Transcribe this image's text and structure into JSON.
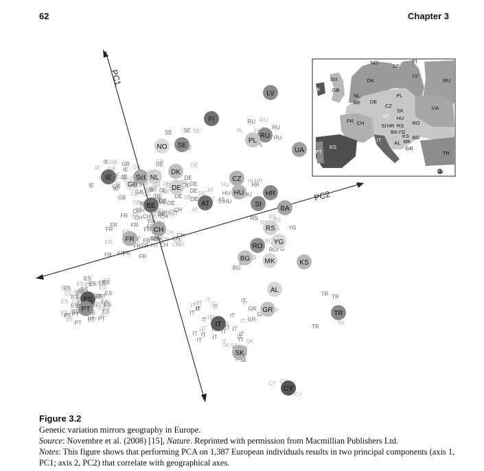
{
  "page": {
    "number": "62",
    "chapter": "Chapter 3"
  },
  "figure": {
    "label": "Figure 3.2",
    "title": "Genetic variation mirrors geography in Europe.",
    "source_label": "Source",
    "source_text_a": ": Novembre et al. (2008) [15], ",
    "source_journal": "Nature",
    "source_text_b": ". Reprinted with permission from Macmillian Publishers Ltd.",
    "notes_label": "Notes",
    "notes_text": ": This figure shows that performing PCA on 1,387 European individuals results in two principal components (axis 1, PC1; axis 2, PC2) that correlate with geographical axes."
  },
  "chart_data": {
    "type": "scatter",
    "axes": {
      "pc1_label": "PC1",
      "pc2_label": "PC2"
    },
    "centroids": [
      {
        "code": "LV",
        "shade": "#8a8a8a"
      },
      {
        "code": "FI",
        "shade": "#707070"
      },
      {
        "code": "RU",
        "shade": "#8e8e8e"
      },
      {
        "code": "PL",
        "shade": "#c6c6c6"
      },
      {
        "code": "UA",
        "shade": "#a0a0a0"
      },
      {
        "code": "NO",
        "shade": "#dadada"
      },
      {
        "code": "SE",
        "shade": "#8c8c8c"
      },
      {
        "code": "DK",
        "shade": "#c0c0c0"
      },
      {
        "code": "CZ",
        "shade": "#b0b0b0"
      },
      {
        "code": "IE",
        "shade": "#6a6a6a"
      },
      {
        "code": "GB",
        "shade": "#e4e4e4"
      },
      {
        "code": "Sct",
        "shade": "#a8a8a8"
      },
      {
        "code": "NL",
        "shade": "#d0d0d0"
      },
      {
        "code": "DE",
        "shade": "#d2d2d2"
      },
      {
        "code": "HU",
        "shade": "#b6b6b6"
      },
      {
        "code": "HR",
        "shade": "#8a8a8a"
      },
      {
        "code": "AT",
        "shade": "#6e6e6e"
      },
      {
        "code": "SI",
        "shade": "#8a8a8a"
      },
      {
        "code": "BA",
        "shade": "#a4a4a4"
      },
      {
        "code": "BE",
        "shade": "#6c6c6c"
      },
      {
        "code": "CH",
        "shade": "#a8a8a8"
      },
      {
        "code": "FR",
        "shade": "#b2b2b2"
      },
      {
        "code": "RS",
        "shade": "#d4d4d4"
      },
      {
        "code": "YG",
        "shade": "#d8d8d8"
      },
      {
        "code": "RO",
        "shade": "#8e8e8e"
      },
      {
        "code": "BG",
        "shade": "#c0c0c0"
      },
      {
        "code": "MK",
        "shade": "#d6d6d6"
      },
      {
        "code": "KS",
        "shade": "#b8b8b8"
      },
      {
        "code": "AL",
        "shade": "#d6d6d6"
      },
      {
        "code": "GR",
        "shade": "#c2c2c2"
      },
      {
        "code": "TR",
        "shade": "#8a8a8a"
      },
      {
        "code": "ES",
        "shade": "#5a5a5a"
      },
      {
        "code": "PT",
        "shade": "#909090"
      },
      {
        "code": "IT",
        "shade": "#5e5e5e"
      },
      {
        "code": "SK",
        "shade": "#b2b2b2"
      },
      {
        "code": "CY",
        "shade": "#555555"
      }
    ],
    "map_labels": [
      "NO",
      "FI",
      "SE",
      "RU",
      "Sct",
      "DK",
      "LV",
      "IE",
      "GB",
      "NL",
      "PL",
      "BE",
      "DE",
      "UA",
      "CZ",
      "SK",
      "FR",
      "AT",
      "HU",
      "CH",
      "SI",
      "HR",
      "RS",
      "RO",
      "BA",
      "YG",
      "KS",
      "BG",
      "IT",
      "AL",
      "MK",
      "PT",
      "ES",
      "GR",
      "TR",
      "CY"
    ]
  }
}
